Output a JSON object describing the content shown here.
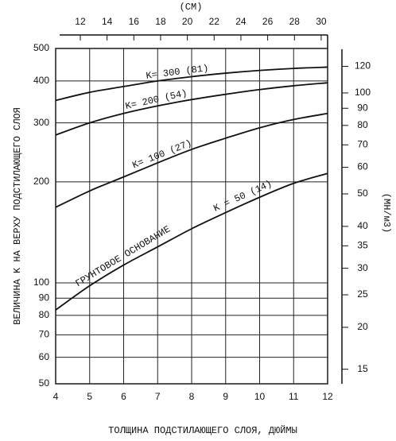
{
  "chart_data": {
    "type": "line",
    "x_label": "ТОЛЩИНА ПОДСТИЛАЮЩЕГО СЛОЯ, ДЮЙМЫ",
    "y_label": "ВЕЛИЧИНА K НА ВЕРХУ ПОДСТИЛАЮЩЕГО СЛОЯ",
    "x2_label": "(СМ)",
    "y2_label": "(МН/м3)",
    "annotation": "ГРУНТОВОЕ ОСНОВАНИЕ",
    "x": [
      4,
      5,
      6,
      7,
      8,
      9,
      10,
      11,
      12
    ],
    "xlim": [
      4,
      12
    ],
    "xticks": [
      4,
      5,
      6,
      7,
      8,
      9,
      10,
      11,
      12
    ],
    "ylim": [
      50,
      500
    ],
    "yticks": [
      50,
      60,
      70,
      80,
      90,
      100,
      200,
      300,
      400,
      500
    ],
    "y_scale": "log",
    "x2lim": [
      10.16,
      30.48
    ],
    "x2ticks": [
      12,
      14,
      16,
      18,
      20,
      22,
      24,
      26,
      28,
      30
    ],
    "y2lim": [
      13.57,
      135.7
    ],
    "y2ticks": [
      15,
      20,
      25,
      30,
      35,
      40,
      50,
      60,
      70,
      80,
      90,
      100,
      120
    ],
    "grid": true,
    "series": [
      {
        "name": "K= 300 (81)",
        "color": "#111111",
        "values": [
          350,
          370,
          385,
          400,
          412,
          422,
          430,
          436,
          440
        ]
      },
      {
        "name": "K= 200 (54)",
        "color": "#111111",
        "values": [
          276,
          300,
          320,
          337,
          352,
          365,
          377,
          387,
          395
        ]
      },
      {
        "name": "K= 100 (27)",
        "color": "#111111",
        "values": [
          168,
          188,
          207,
          228,
          250,
          270,
          290,
          307,
          320
        ]
      },
      {
        "name": "K = 50 (14)",
        "color": "#111111",
        "values": [
          83,
          98,
          113,
          128,
          145,
          162,
          180,
          198,
          212
        ]
      }
    ]
  }
}
